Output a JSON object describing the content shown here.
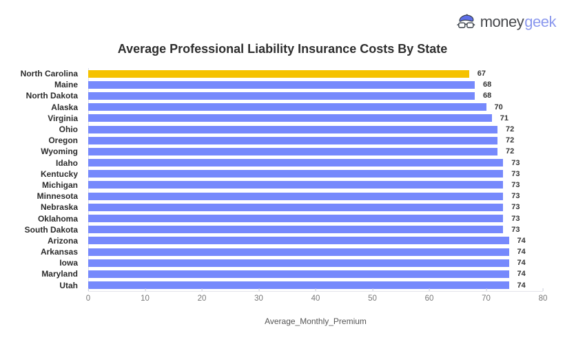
{
  "logo": {
    "brand_primary": "money",
    "brand_secondary": "geek",
    "primary_color": "#45474b",
    "secondary_color": "#8b98ee",
    "icon_hat_color": "#5e6fe8",
    "icon_outline_color": "#3a4149"
  },
  "chart_data": {
    "type": "bar",
    "orientation": "horizontal",
    "title": "Average Professional Liability Insurance Costs By State",
    "xlabel": "Average_Monthly_Premium",
    "ylabel": "",
    "xlim": [
      0,
      80
    ],
    "x_ticks": [
      0,
      10,
      20,
      30,
      40,
      50,
      60,
      70,
      80
    ],
    "grid": false,
    "legend": false,
    "value_labels_shown": true,
    "bar_color": "#7689fc",
    "highlight_color": "#f5c201",
    "highlight_index": 0,
    "categories": [
      "North Carolina",
      "Maine",
      "North Dakota",
      "Alaska",
      "Virginia",
      "Ohio",
      "Oregon",
      "Wyoming",
      "Idaho",
      "Kentucky",
      "Michigan",
      "Minnesota",
      "Nebraska",
      "Oklahoma",
      "South Dakota",
      "Arizona",
      "Arkansas",
      "Iowa",
      "Maryland",
      "Utah"
    ],
    "values": [
      67,
      68,
      68,
      70,
      71,
      72,
      72,
      72,
      73,
      73,
      73,
      73,
      73,
      73,
      73,
      74,
      74,
      74,
      74,
      74
    ]
  }
}
